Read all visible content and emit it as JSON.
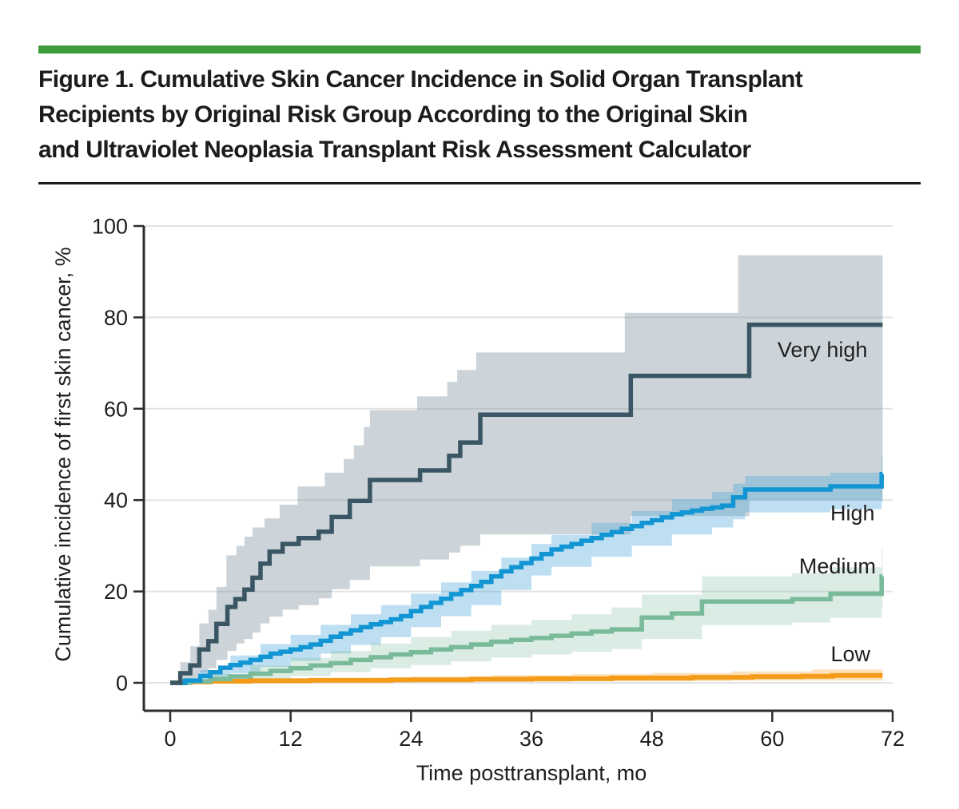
{
  "figure": {
    "title": "Figure 1. Cumulative Skin Cancer Incidence in Solid Organ Transplant Recipients by Original Risk Group According to the Original Skin and Ultraviolet Neoplasia Transplant Risk Assessment Calculator",
    "title_lines": [
      "Figure 1. Cumulative Skin Cancer Incidence in Solid Organ Transplant",
      "Recipients by Original Risk Group According to the Original Skin",
      "and Ultraviolet Neoplasia Transplant Risk Assessment Calculator"
    ],
    "accent_color": "#3e9c3a",
    "rule_color": "#1c1c1c"
  },
  "chart_data": {
    "type": "line",
    "subtype": "kaplan-meier-step-curves-with-confidence-bands",
    "title": "",
    "xlabel": "Time posttransplant, mo",
    "ylabel": "Cumulative incidence of first skin cancer, %",
    "xlim": [
      0,
      72
    ],
    "ylim": [
      0,
      100
    ],
    "xticks": [
      0,
      12,
      24,
      36,
      48,
      60,
      72
    ],
    "yticks": [
      0,
      20,
      40,
      60,
      80,
      100
    ],
    "grid": true,
    "grid_color": "#e3e3e3",
    "axis_color": "#2d2d2d",
    "legend_position": "inline-labels-right",
    "series": [
      {
        "name": "Very high",
        "color": "#3a5563",
        "band_color": "rgba(128,148,160,0.40)",
        "label_at": [
          65,
          73
        ],
        "points": [
          [
            0,
            0
          ],
          [
            1,
            2.1
          ],
          [
            2,
            3.8
          ],
          [
            2.9,
            7.3
          ],
          [
            3.8,
            9.1
          ],
          [
            4.6,
            12.9
          ],
          [
            5.7,
            16.6
          ],
          [
            6.5,
            18.3
          ],
          [
            7.4,
            20.4
          ],
          [
            8.2,
            23
          ],
          [
            9,
            26.1
          ],
          [
            9.9,
            28.7
          ],
          [
            11.2,
            30.4
          ],
          [
            12.8,
            31.7
          ],
          [
            14.8,
            33.1
          ],
          [
            16.1,
            36.3
          ],
          [
            17.9,
            39.8
          ],
          [
            19.9,
            44.4
          ],
          [
            24.9,
            46.5
          ],
          [
            27.8,
            49.7
          ],
          [
            28.9,
            52.6
          ],
          [
            30.9,
            58.7
          ],
          [
            45.9,
            67.2
          ],
          [
            57.7,
            78.4
          ],
          [
            71,
            78.4
          ]
        ],
        "ci_upper": [
          [
            0,
            0
          ],
          [
            1,
            4.5
          ],
          [
            2,
            8
          ],
          [
            2.9,
            13
          ],
          [
            3.8,
            16
          ],
          [
            4.6,
            21
          ],
          [
            5.6,
            27.9
          ],
          [
            6.6,
            30
          ],
          [
            7.4,
            32
          ],
          [
            8.2,
            34
          ],
          [
            9.4,
            36
          ],
          [
            10.9,
            39
          ],
          [
            12.7,
            43
          ],
          [
            15.4,
            46
          ],
          [
            17.3,
            49
          ],
          [
            18.3,
            52
          ],
          [
            19.3,
            56
          ],
          [
            19.9,
            59.7
          ],
          [
            24.6,
            62.7
          ],
          [
            27.6,
            65.9
          ],
          [
            28.6,
            68.5
          ],
          [
            30.5,
            72.3
          ],
          [
            45.3,
            81
          ],
          [
            56.6,
            93.6
          ],
          [
            71,
            93.6
          ]
        ],
        "ci_lower": [
          [
            0,
            0
          ],
          [
            1,
            0.4
          ],
          [
            2,
            1
          ],
          [
            2.9,
            2.2
          ],
          [
            3.8,
            3.2
          ],
          [
            4.6,
            5
          ],
          [
            5.7,
            7
          ],
          [
            6.6,
            8.6
          ],
          [
            7.4,
            9.6
          ],
          [
            8.2,
            11
          ],
          [
            9,
            13
          ],
          [
            9.9,
            14.5
          ],
          [
            11.2,
            16
          ],
          [
            12.8,
            17
          ],
          [
            14.8,
            18.5
          ],
          [
            16.1,
            20.5
          ],
          [
            17.9,
            22.5
          ],
          [
            19.9,
            25.5
          ],
          [
            24.9,
            27
          ],
          [
            27.8,
            28.5
          ],
          [
            28.9,
            30
          ],
          [
            30.9,
            32.5
          ],
          [
            45.9,
            36.5
          ],
          [
            57.7,
            40
          ],
          [
            71,
            40
          ]
        ]
      },
      {
        "name": "High",
        "color": "#1295d3",
        "band_color": "rgba(85,170,220,0.38)",
        "label_at": [
          68,
          37.2
        ],
        "points": [
          [
            0,
            0
          ],
          [
            1.5,
            0.5
          ],
          [
            3,
            1.5
          ],
          [
            4,
            2.3
          ],
          [
            5,
            3.3
          ],
          [
            6,
            3.9
          ],
          [
            7,
            4.4
          ],
          [
            8,
            5
          ],
          [
            9,
            5.7
          ],
          [
            10,
            6.4
          ],
          [
            11,
            6.8
          ],
          [
            12,
            7.3
          ],
          [
            13,
            7.8
          ],
          [
            14,
            8.4
          ],
          [
            15,
            9.2
          ],
          [
            16,
            10.1
          ],
          [
            17,
            10.8
          ],
          [
            18,
            11.5
          ],
          [
            19,
            12.2
          ],
          [
            20,
            12.8
          ],
          [
            21,
            13.3
          ],
          [
            22,
            13.9
          ],
          [
            23,
            14.6
          ],
          [
            24,
            15.7
          ],
          [
            25,
            16.6
          ],
          [
            26,
            17.5
          ],
          [
            27,
            18.4
          ],
          [
            28,
            19.4
          ],
          [
            29,
            20.3
          ],
          [
            30,
            21.2
          ],
          [
            31,
            22.1
          ],
          [
            32,
            23.3
          ],
          [
            33,
            24.4
          ],
          [
            34,
            25.3
          ],
          [
            35,
            26.2
          ],
          [
            36,
            27.2
          ],
          [
            37,
            28.2
          ],
          [
            38,
            29.2
          ],
          [
            39,
            29.8
          ],
          [
            40,
            30.4
          ],
          [
            41,
            31.1
          ],
          [
            42,
            31.7
          ],
          [
            43,
            32.4
          ],
          [
            44,
            33
          ],
          [
            45,
            33.7
          ],
          [
            46,
            34.3
          ],
          [
            47,
            35
          ],
          [
            48,
            35.6
          ],
          [
            49,
            36.2
          ],
          [
            50,
            36.9
          ],
          [
            51,
            37.3
          ],
          [
            52,
            37.7
          ],
          [
            53,
            38.1
          ],
          [
            54,
            38.4
          ],
          [
            55,
            38.8
          ],
          [
            56.1,
            40.6
          ],
          [
            57.3,
            42.3
          ],
          [
            65.8,
            43
          ],
          [
            70.9,
            45.7
          ],
          [
            71,
            45.7
          ]
        ],
        "ci_upper": [
          [
            0,
            0
          ],
          [
            3,
            2.8
          ],
          [
            6,
            6
          ],
          [
            9,
            8.5
          ],
          [
            12,
            10.5
          ],
          [
            15,
            12.7
          ],
          [
            18,
            15
          ],
          [
            21,
            17
          ],
          [
            24,
            19.5
          ],
          [
            27,
            22
          ],
          [
            30,
            24.5
          ],
          [
            33,
            27.4
          ],
          [
            36,
            30.4
          ],
          [
            38,
            32.4
          ],
          [
            42,
            35
          ],
          [
            46,
            37.6
          ],
          [
            50,
            40.2
          ],
          [
            54,
            41.8
          ],
          [
            56.1,
            43.6
          ],
          [
            57.3,
            45.3
          ],
          [
            65.8,
            46
          ],
          [
            70.9,
            49.6
          ],
          [
            71,
            49.6
          ]
        ],
        "ci_lower": [
          [
            0,
            0
          ],
          [
            3,
            0.6
          ],
          [
            6,
            2.1
          ],
          [
            9,
            3.5
          ],
          [
            12,
            4.8
          ],
          [
            15,
            6.4
          ],
          [
            18,
            8.3
          ],
          [
            21,
            10
          ],
          [
            24,
            12.2
          ],
          [
            27,
            14.6
          ],
          [
            30,
            17
          ],
          [
            33,
            20.3
          ],
          [
            36,
            23.5
          ],
          [
            38,
            25.4
          ],
          [
            42,
            27.6
          ],
          [
            46,
            30
          ],
          [
            50,
            32.5
          ],
          [
            54,
            34
          ],
          [
            56.1,
            35.8
          ],
          [
            57.3,
            37.3
          ],
          [
            65.8,
            38
          ],
          [
            70.9,
            39.5
          ],
          [
            71,
            39.5
          ]
        ]
      },
      {
        "name": "Medium",
        "color": "#79ba9a",
        "band_color": "rgba(121,186,154,0.28)",
        "label_at": [
          66.5,
          25.6
        ],
        "points": [
          [
            0,
            0
          ],
          [
            2,
            0.3
          ],
          [
            4,
            0.8
          ],
          [
            6,
            1.4
          ],
          [
            8,
            2
          ],
          [
            10,
            2.6
          ],
          [
            12,
            3.2
          ],
          [
            14,
            3.8
          ],
          [
            16,
            4.3
          ],
          [
            18,
            5
          ],
          [
            20,
            5.6
          ],
          [
            22,
            6.2
          ],
          [
            24,
            6.7
          ],
          [
            26,
            7.3
          ],
          [
            28,
            7.8
          ],
          [
            30,
            8.4
          ],
          [
            32,
            9
          ],
          [
            34,
            9.4
          ],
          [
            36,
            9.8
          ],
          [
            38,
            10.3
          ],
          [
            40,
            10.8
          ],
          [
            42,
            11.2
          ],
          [
            44,
            11.7
          ],
          [
            47,
            14.3
          ],
          [
            50,
            15.2
          ],
          [
            53,
            17.8
          ],
          [
            62,
            18.3
          ],
          [
            65.8,
            19.5
          ],
          [
            70.9,
            23.3
          ],
          [
            71,
            23.3
          ]
        ],
        "ci_upper": [
          [
            0,
            0
          ],
          [
            4,
            2
          ],
          [
            8,
            3.8
          ],
          [
            12,
            5.5
          ],
          [
            16,
            7
          ],
          [
            20,
            8.6
          ],
          [
            24,
            10
          ],
          [
            28,
            11.4
          ],
          [
            32,
            12.7
          ],
          [
            36,
            13.8
          ],
          [
            40,
            15
          ],
          [
            44,
            16.5
          ],
          [
            47,
            19.3
          ],
          [
            53,
            23.3
          ],
          [
            62,
            24
          ],
          [
            65.8,
            25.3
          ],
          [
            70.9,
            29.4
          ],
          [
            71,
            29.4
          ]
        ],
        "ci_lower": [
          [
            0,
            0
          ],
          [
            4,
            0.2
          ],
          [
            8,
            0.8
          ],
          [
            12,
            1.5
          ],
          [
            16,
            2.3
          ],
          [
            20,
            3.2
          ],
          [
            24,
            3.9
          ],
          [
            28,
            4.7
          ],
          [
            32,
            5.5
          ],
          [
            36,
            6.2
          ],
          [
            40,
            6.8
          ],
          [
            44,
            7.4
          ],
          [
            47,
            9.6
          ],
          [
            53,
            12.6
          ],
          [
            62,
            13.2
          ],
          [
            65.8,
            14.2
          ],
          [
            70.9,
            16.5
          ],
          [
            71,
            16.5
          ]
        ]
      },
      {
        "name": "Low",
        "color": "#f49c19",
        "band_color": "rgba(244,156,25,0.30)",
        "label_at": [
          67.8,
          6.4
        ],
        "points": [
          [
            0,
            0
          ],
          [
            1.5,
            0.2
          ],
          [
            4,
            0.35
          ],
          [
            8,
            0.45
          ],
          [
            14,
            0.55
          ],
          [
            22,
            0.65
          ],
          [
            30,
            0.8
          ],
          [
            36,
            0.9
          ],
          [
            44,
            1.05
          ],
          [
            52,
            1.2
          ],
          [
            58,
            1.35
          ],
          [
            63,
            1.45
          ],
          [
            66,
            1.6
          ],
          [
            71,
            1.6
          ]
        ],
        "ci_upper": [
          [
            0,
            0
          ],
          [
            1.5,
            0.5
          ],
          [
            8,
            0.9
          ],
          [
            16,
            1.1
          ],
          [
            24,
            1.35
          ],
          [
            32,
            1.65
          ],
          [
            40,
            1.9
          ],
          [
            48,
            2.15
          ],
          [
            56,
            2.5
          ],
          [
            64,
            2.9
          ],
          [
            71,
            2.9
          ]
        ],
        "ci_lower": [
          [
            0,
            0
          ],
          [
            8,
            0.1
          ],
          [
            24,
            0.2
          ],
          [
            40,
            0.35
          ],
          [
            56,
            0.5
          ],
          [
            71,
            0.5
          ]
        ]
      }
    ]
  }
}
